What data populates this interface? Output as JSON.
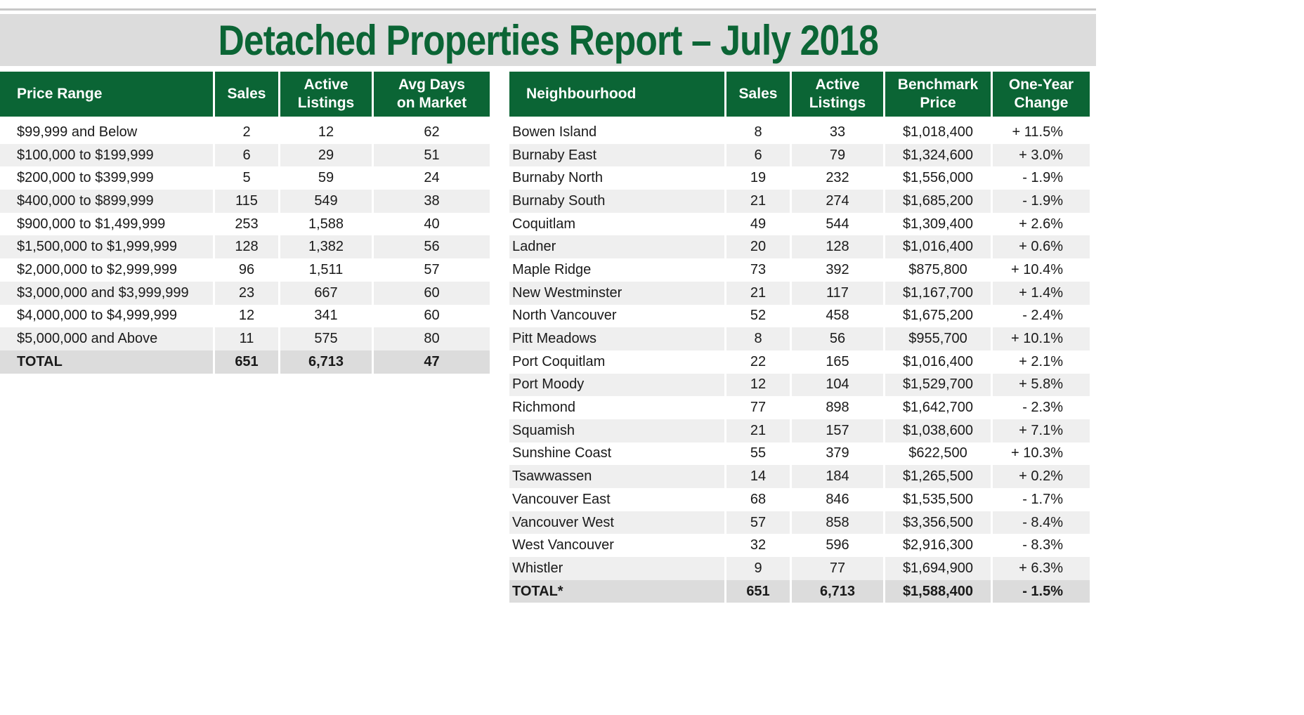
{
  "title": "Detached Properties Report – July 2018",
  "price_table": {
    "headers": {
      "range": "Price Range",
      "sales": "Sales",
      "active_l1": "Active",
      "active_l2": "Listings",
      "days_l1": "Avg Days",
      "days_l2": "on Market"
    },
    "rows": [
      {
        "range": "$99,999 and Below",
        "sales": "2",
        "active": "12",
        "days": "62"
      },
      {
        "range": "$100,000 to $199,999",
        "sales": "6",
        "active": "29",
        "days": "51"
      },
      {
        "range": "$200,000 to $399,999",
        "sales": "5",
        "active": "59",
        "days": "24"
      },
      {
        "range": "$400,000 to $899,999",
        "sales": "115",
        "active": "549",
        "days": "38"
      },
      {
        "range": "$900,000 to $1,499,999",
        "sales": "253",
        "active": "1,588",
        "days": "40"
      },
      {
        "range": "$1,500,000 to $1,999,999",
        "sales": "128",
        "active": "1,382",
        "days": "56"
      },
      {
        "range": "$2,000,000 to $2,999,999",
        "sales": "96",
        "active": "1,511",
        "days": "57"
      },
      {
        "range": "$3,000,000 and $3,999,999",
        "sales": "23",
        "active": "667",
        "days": "60"
      },
      {
        "range": "$4,000,000 to $4,999,999",
        "sales": "12",
        "active": "341",
        "days": "60"
      },
      {
        "range": "$5,000,000 and Above",
        "sales": "11",
        "active": "575",
        "days": "80"
      }
    ],
    "total": {
      "label": "TOTAL",
      "sales": "651",
      "active": "6,713",
      "days": "47"
    }
  },
  "hood_table": {
    "headers": {
      "name": "Neighbourhood",
      "sales": "Sales",
      "active_l1": "Active",
      "active_l2": "Listings",
      "bench_l1": "Benchmark",
      "bench_l2": "Price",
      "change_l1": "One-Year",
      "change_l2": "Change"
    },
    "rows": [
      {
        "name": "Bowen Island",
        "sales": "8",
        "active": "33",
        "price": "$1,018,400",
        "change": "+ 11.5%"
      },
      {
        "name": "Burnaby East",
        "sales": "6",
        "active": "79",
        "price": "$1,324,600",
        "change": "+ 3.0%"
      },
      {
        "name": "Burnaby North",
        "sales": "19",
        "active": "232",
        "price": "$1,556,000",
        "change": "- 1.9%"
      },
      {
        "name": "Burnaby South",
        "sales": "21",
        "active": "274",
        "price": "$1,685,200",
        "change": "- 1.9%"
      },
      {
        "name": "Coquitlam",
        "sales": "49",
        "active": "544",
        "price": "$1,309,400",
        "change": "+ 2.6%"
      },
      {
        "name": "Ladner",
        "sales": "20",
        "active": "128",
        "price": "$1,016,400",
        "change": "+ 0.6%"
      },
      {
        "name": "Maple Ridge",
        "sales": "73",
        "active": "392",
        "price": "$875,800",
        "change": "+ 10.4%"
      },
      {
        "name": "New Westminster",
        "sales": "21",
        "active": "117",
        "price": "$1,167,700",
        "change": "+ 1.4%"
      },
      {
        "name": "North Vancouver",
        "sales": "52",
        "active": "458",
        "price": "$1,675,200",
        "change": "- 2.4%"
      },
      {
        "name": "Pitt Meadows",
        "sales": "8",
        "active": "56",
        "price": "$955,700",
        "change": "+ 10.1%"
      },
      {
        "name": "Port Coquitlam",
        "sales": "22",
        "active": "165",
        "price": "$1,016,400",
        "change": "+ 2.1%"
      },
      {
        "name": "Port Moody",
        "sales": "12",
        "active": "104",
        "price": "$1,529,700",
        "change": "+ 5.8%"
      },
      {
        "name": "Richmond",
        "sales": "77",
        "active": "898",
        "price": "$1,642,700",
        "change": "- 2.3%"
      },
      {
        "name": "Squamish",
        "sales": "21",
        "active": "157",
        "price": "$1,038,600",
        "change": "+ 7.1%"
      },
      {
        "name": "Sunshine Coast",
        "sales": "55",
        "active": "379",
        "price": "$622,500",
        "change": "+ 10.3%"
      },
      {
        "name": "Tsawwassen",
        "sales": "14",
        "active": "184",
        "price": "$1,265,500",
        "change": "+ 0.2%"
      },
      {
        "name": "Vancouver East",
        "sales": "68",
        "active": "846",
        "price": "$1,535,500",
        "change": "- 1.7%"
      },
      {
        "name": "Vancouver West",
        "sales": "57",
        "active": "858",
        "price": "$3,356,500",
        "change": "- 8.4%"
      },
      {
        "name": "West Vancouver",
        "sales": "32",
        "active": "596",
        "price": "$2,916,300",
        "change": "- 8.3%"
      },
      {
        "name": "Whistler",
        "sales": "9",
        "active": "77",
        "price": "$1,694,900",
        "change": "+ 6.3%"
      }
    ],
    "total": {
      "label": "TOTAL*",
      "sales": "651",
      "active": "6,713",
      "price": "$1,588,400",
      "change": "- 1.5%"
    }
  },
  "colors": {
    "header_green": "#0b6535",
    "title_green": "#0b6535",
    "band_gray": "#dcdcdc",
    "row_shade": "#efefef"
  }
}
